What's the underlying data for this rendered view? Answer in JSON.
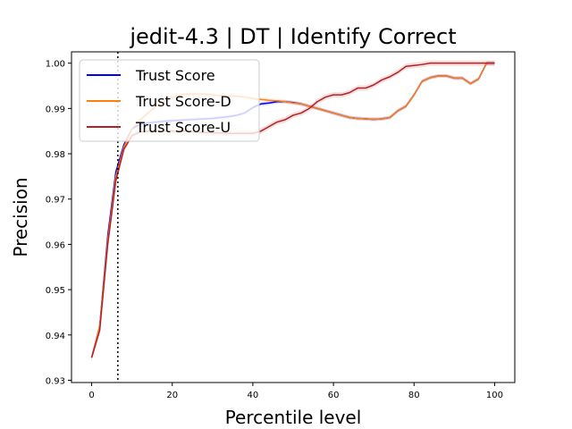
{
  "chart_data": {
    "type": "line",
    "title": "jedit-4.3 | DT | Identify Correct",
    "xlabel": "Percentile level",
    "ylabel": "Precision",
    "xlim": [
      -5,
      105
    ],
    "ylim": [
      0.9295,
      1.0025
    ],
    "xticks": [
      0,
      20,
      40,
      60,
      80,
      100
    ],
    "yticks": [
      0.93,
      0.94,
      0.95,
      0.96,
      0.97,
      0.98,
      0.99,
      1.0
    ],
    "ytick_labels": [
      "0.93",
      "0.94",
      "0.95",
      "0.96",
      "0.97",
      "0.98",
      "0.99",
      "1.00"
    ],
    "legend_position": "upper-left",
    "grid": false,
    "vline": {
      "x": 6.5,
      "style": "dotted",
      "color": "#000000"
    },
    "series": [
      {
        "name": "Trust Score",
        "color": "#0000ff",
        "x": [
          0,
          2,
          4,
          6,
          8,
          10,
          12,
          14,
          16,
          18,
          20,
          22,
          24,
          26,
          28,
          30,
          32,
          34,
          36,
          38,
          40,
          42,
          44,
          46,
          48,
          50,
          52,
          54,
          56,
          58,
          60,
          62,
          64,
          66,
          68,
          70,
          72,
          74,
          76,
          78,
          80,
          82,
          84,
          86,
          88,
          90,
          92,
          94,
          96,
          98,
          100
        ],
        "y": [
          0.935,
          0.942,
          0.962,
          0.976,
          0.982,
          0.9855,
          0.9865,
          0.9868,
          0.987,
          0.9872,
          0.9873,
          0.9874,
          0.9875,
          0.9876,
          0.9877,
          0.9878,
          0.988,
          0.9882,
          0.9885,
          0.989,
          0.9902,
          0.991,
          0.9912,
          0.9915,
          0.9915,
          0.9913,
          0.991,
          0.9905,
          0.99,
          0.9895,
          0.989,
          0.9885,
          0.988,
          0.9878,
          0.9877,
          0.9876,
          0.9877,
          0.988,
          0.9895,
          0.9905,
          0.993,
          0.996,
          0.9968,
          0.9972,
          0.9972,
          0.9967,
          0.9967,
          0.9955,
          0.9965,
          1.0,
          1.0
        ],
        "band": 0.0004
      },
      {
        "name": "Trust Score-D",
        "color": "#ff7f0e",
        "x": [
          0,
          2,
          4,
          6,
          8,
          10,
          12,
          14,
          16,
          18,
          20,
          22,
          24,
          26,
          28,
          30,
          32,
          34,
          36,
          38,
          40,
          42,
          44,
          46,
          48,
          50,
          52,
          54,
          56,
          58,
          60,
          62,
          64,
          66,
          68,
          70,
          72,
          74,
          76,
          78,
          80,
          82,
          84,
          86,
          88,
          90,
          92,
          94,
          96,
          98,
          100
        ],
        "y": [
          0.935,
          0.942,
          0.961,
          0.975,
          0.9815,
          0.9855,
          0.9875,
          0.989,
          0.9905,
          0.9915,
          0.9925,
          0.993,
          0.9932,
          0.9932,
          0.9932,
          0.993,
          0.9928,
          0.9927,
          0.9927,
          0.9925,
          0.9922,
          0.992,
          0.9918,
          0.9917,
          0.9915,
          0.9912,
          0.991,
          0.9905,
          0.99,
          0.9895,
          0.989,
          0.9885,
          0.988,
          0.9878,
          0.9877,
          0.9876,
          0.9877,
          0.988,
          0.9895,
          0.9905,
          0.993,
          0.996,
          0.9968,
          0.9972,
          0.9972,
          0.9967,
          0.9967,
          0.9955,
          0.9965,
          1.0,
          1.0
        ],
        "band": 0.0004
      },
      {
        "name": "Trust Score-U",
        "color": "#b22222",
        "x": [
          0,
          2,
          4,
          6,
          8,
          10,
          12,
          14,
          16,
          18,
          20,
          22,
          24,
          26,
          28,
          30,
          32,
          34,
          36,
          38,
          40,
          42,
          44,
          46,
          48,
          50,
          52,
          54,
          56,
          58,
          60,
          62,
          64,
          66,
          68,
          70,
          72,
          74,
          76,
          78,
          80,
          82,
          84,
          86,
          88,
          90,
          92,
          94,
          96,
          98,
          100
        ],
        "y": [
          0.935,
          0.941,
          0.96,
          0.974,
          0.981,
          0.984,
          0.9848,
          0.985,
          0.985,
          0.985,
          0.985,
          0.985,
          0.985,
          0.9848,
          0.9847,
          0.9846,
          0.9846,
          0.9845,
          0.9845,
          0.9845,
          0.9845,
          0.985,
          0.986,
          0.987,
          0.9875,
          0.9885,
          0.989,
          0.99,
          0.9915,
          0.9925,
          0.993,
          0.993,
          0.9935,
          0.9945,
          0.9945,
          0.9952,
          0.9963,
          0.997,
          0.998,
          0.9993,
          0.9995,
          0.9997,
          1.0,
          1.0,
          1.0,
          1.0,
          1.0,
          1.0,
          1.0,
          1.0,
          1.0
        ],
        "band": 0.0006
      }
    ]
  }
}
